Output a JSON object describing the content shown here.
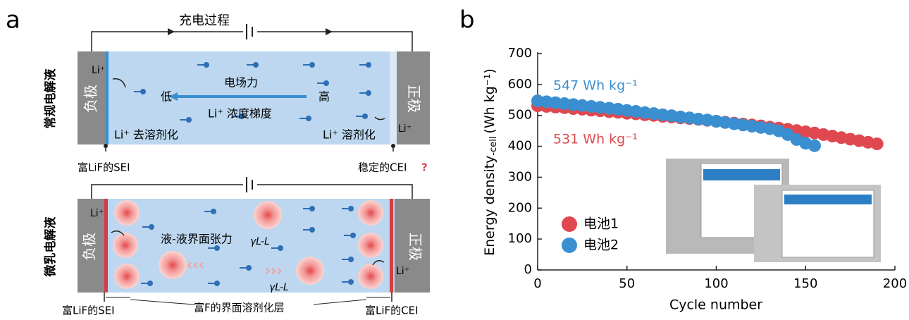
{
  "panel_a": {
    "label": "a",
    "charging_title": "充电过程",
    "top": {
      "name": "常规电解液",
      "anode": "负极",
      "cathode": "正极",
      "li_anode": "Li⁺",
      "li_cathode": "Li⁺",
      "field_force": "电场力",
      "low": "低",
      "high": "高",
      "gradient": "Li⁺ 浓度梯度",
      "desolvation": "Li⁺ 去溶剂化",
      "solvation": "Li⁺ 溶剂化",
      "sei": "富LiF的SEI",
      "cei": "稳定的CEI",
      "question": "?"
    },
    "bottom": {
      "name": "微乳电解液",
      "anode": "负极",
      "cathode": "正极",
      "li_anode": "Li⁺",
      "li_cathode": "Li⁺",
      "tension": "液-液界面张力",
      "gamma_1": "γL-L",
      "gamma_2": "γL-L",
      "sei": "富LiF的SEI",
      "layer": "富F的界面溶剂化层",
      "cei": "富LiF的CEI"
    }
  },
  "chart_data": {
    "type": "scatter",
    "label": "b",
    "y_label": "Energy density",
    "y_label_sub": "-cell",
    "y_label_unit": "(Wh kg⁻¹)",
    "x_label": "Cycle number",
    "xlim": [
      0,
      200
    ],
    "xticks": [
      0,
      50,
      100,
      150,
      200
    ],
    "ylim": [
      0,
      700
    ],
    "yticks": [
      0,
      100,
      200,
      300,
      400,
      500,
      600,
      700
    ],
    "annotations": [
      {
        "text": "547 Wh kg⁻¹",
        "color": "#3a8fd0"
      },
      {
        "text": "531 Wh kg⁻¹",
        "color": "#e0484f"
      }
    ],
    "series": [
      {
        "name": "电池1",
        "color": "#e0484f",
        "x": [
          0,
          5,
          10,
          15,
          20,
          25,
          30,
          35,
          40,
          45,
          50,
          55,
          60,
          65,
          70,
          75,
          80,
          85,
          90,
          95,
          100,
          105,
          110,
          115,
          120,
          125,
          130,
          135,
          140,
          145,
          150,
          155,
          160,
          165,
          170,
          175,
          180,
          185,
          190
        ],
        "values": [
          531,
          529,
          527,
          525,
          522,
          520,
          517,
          515,
          512,
          510,
          507,
          505,
          502,
          500,
          497,
          495,
          492,
          490,
          487,
          484,
          481,
          478,
          475,
          472,
          469,
          466,
          462,
          459,
          455,
          451,
          447,
          443,
          438,
          433,
          428,
          423,
          418,
          413,
          408
        ]
      },
      {
        "name": "电池2",
        "color": "#3a8fd0",
        "x": [
          0,
          5,
          10,
          15,
          20,
          25,
          30,
          35,
          40,
          45,
          50,
          55,
          60,
          65,
          70,
          75,
          80,
          85,
          90,
          95,
          100,
          105,
          110,
          115,
          120,
          125,
          130,
          135,
          140,
          145,
          150,
          155
        ],
        "values": [
          547,
          544,
          541,
          538,
          535,
          532,
          529,
          526,
          523,
          520,
          516,
          513,
          509,
          506,
          502,
          499,
          495,
          492,
          488,
          485,
          481,
          477,
          473,
          469,
          465,
          461,
          457,
          450,
          438,
          422,
          410,
          402
        ]
      }
    ]
  }
}
